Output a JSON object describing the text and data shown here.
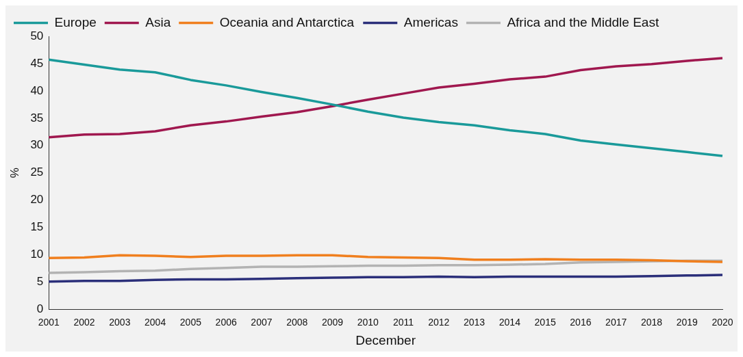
{
  "chart_data": {
    "type": "line",
    "xlabel": "December",
    "ylabel": "%",
    "categories": [
      "2001",
      "2002",
      "2003",
      "2004",
      "2005",
      "2006",
      "2007",
      "2008",
      "2009",
      "2010",
      "2011",
      "2012",
      "2013",
      "2014",
      "2015",
      "2016",
      "2017",
      "2018",
      "2019",
      "2020"
    ],
    "series": [
      {
        "name": "Europe",
        "color": "#1a9a9a",
        "values": [
          45.7,
          44.8,
          43.9,
          43.4,
          42,
          41,
          39.8,
          38.7,
          37.5,
          36.2,
          35.1,
          34.3,
          33.7,
          32.8,
          32.1,
          30.9,
          30.2,
          29.5,
          28.8,
          28.1
        ]
      },
      {
        "name": "Asia",
        "color": "#a0184f",
        "values": [
          31.5,
          32,
          32.1,
          32.6,
          33.7,
          34.4,
          35.3,
          36.1,
          37.2,
          38.4,
          39.5,
          40.6,
          41.3,
          42.1,
          42.6,
          43.8,
          44.5,
          44.9,
          45.5,
          46
        ]
      },
      {
        "name": "Oceania and Antarctica",
        "color": "#f07f1e",
        "values": [
          9.4,
          9.5,
          9.9,
          9.8,
          9.6,
          9.8,
          9.8,
          9.9,
          9.9,
          9.6,
          9.5,
          9.4,
          9.1,
          9.1,
          9.2,
          9.1,
          9.1,
          9,
          8.8,
          8.7
        ]
      },
      {
        "name": "Americas",
        "color": "#2b2f7a",
        "values": [
          5.1,
          5.2,
          5.2,
          5.4,
          5.5,
          5.5,
          5.6,
          5.7,
          5.8,
          5.9,
          5.9,
          6,
          5.9,
          6,
          6,
          6,
          6,
          6.1,
          6.2,
          6.3
        ]
      },
      {
        "name": "Africa and the Middle East",
        "color": "#b3b3b3",
        "values": [
          6.7,
          6.8,
          7,
          7.1,
          7.4,
          7.6,
          7.8,
          7.8,
          7.9,
          8,
          8,
          8.1,
          8.1,
          8.2,
          8.3,
          8.6,
          8.7,
          8.8,
          8.9,
          8.9
        ]
      }
    ],
    "ylim": [
      0,
      50
    ],
    "yticks": [
      0,
      5,
      10,
      15,
      20,
      25,
      30,
      35,
      40,
      45,
      50
    ],
    "grid": false,
    "legend": "top left",
    "marker": "none",
    "line_style": "solid"
  }
}
